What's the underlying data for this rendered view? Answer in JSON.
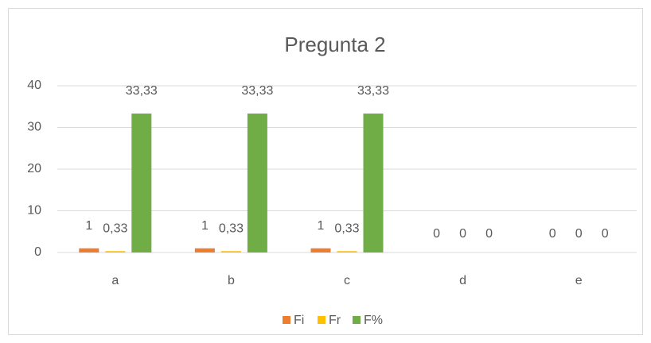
{
  "chart_data": {
    "type": "bar",
    "title": "Pregunta 2",
    "categories": [
      "a",
      "b",
      "c",
      "d",
      "e"
    ],
    "series": [
      {
        "name": "Fi",
        "color": "#ED7D31",
        "values": [
          1,
          1,
          1,
          0,
          0
        ]
      },
      {
        "name": "Fr",
        "color": "#FFC000",
        "values": [
          0.33,
          0.33,
          0.33,
          0,
          0
        ],
        "value_labels": [
          "0,33",
          "0,33",
          "0,33",
          "0",
          "0"
        ]
      },
      {
        "name": "F%",
        "color": "#70AD47",
        "values": [
          33.33,
          33.33,
          33.33,
          0,
          0
        ],
        "value_labels": [
          "33,33",
          "33,33",
          "33,33",
          "0",
          "0"
        ]
      }
    ],
    "ylim": [
      0,
      40
    ],
    "yticks": [
      0,
      10,
      20,
      30,
      40
    ],
    "grid": true,
    "legend": "bottom"
  }
}
